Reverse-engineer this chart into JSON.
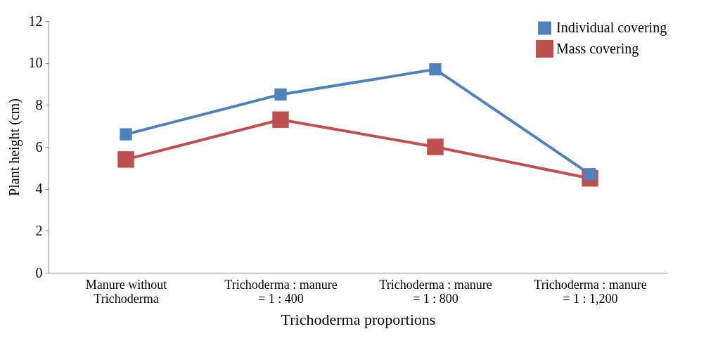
{
  "chart_data": {
    "type": "line",
    "xlabel": "Trichoderma proportions",
    "ylabel": "Plant height (cm)",
    "categories": [
      "Manure without Trichoderma",
      "Trichoderma : manure = 1 : 400",
      "Trichoderma : manure = 1 : 800",
      "Trichoderma : manure = 1 : 1,200"
    ],
    "series": [
      {
        "name": "Individual covering",
        "color": "#4f81bd",
        "values": [
          6.6,
          8.5,
          9.7,
          4.7
        ]
      },
      {
        "name": "Mass covering",
        "color": "#c0504d",
        "values": [
          5.4,
          7.3,
          6.0,
          4.5
        ]
      }
    ],
    "ylim": [
      0,
      12
    ],
    "yticks": [
      0,
      2,
      4,
      6,
      8,
      10,
      12
    ],
    "grid": false,
    "legend": "top right",
    "marker": "square",
    "line_style": "solid"
  }
}
